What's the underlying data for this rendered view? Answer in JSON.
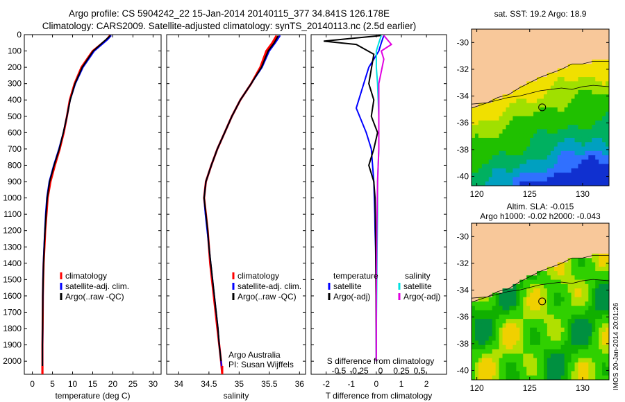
{
  "header": {
    "line1": "Argo profile: CS 5904242_22 15-Jan-2014 20140115_377 34.841S 126.178E",
    "line2": "Climatology: CARS2009. Satellite-adjusted climatology: synTS_20140113.nc (2.5d earlier)"
  },
  "side_label": "IMOS 20-Jan-2014 20:01:26",
  "colors": {
    "climatology": "#ff0000",
    "satellite": "#0000ff",
    "argo": "#000000",
    "sal_satellite": "#00e0e0",
    "sal_argo": "#e000e0",
    "land": "#f8c89a"
  },
  "panel1": {
    "xlabel": "temperature (deg C)",
    "xticks": [
      0,
      5,
      10,
      15,
      20,
      25,
      30
    ],
    "xlim": [
      -2,
      32
    ],
    "legend": [
      "climatology",
      "satellite-adj. clim.",
      "Argo(..raw -QC)"
    ]
  },
  "panel2": {
    "xlabel": "salinity",
    "xticks": [
      34,
      34.5,
      35,
      35.5,
      36
    ],
    "xlim": [
      33.8,
      36.1
    ],
    "legend": [
      "climatology",
      "satellite-adj. clim.",
      "Argo(..raw -QC)"
    ],
    "note1": "Argo Australia",
    "note2": "PI: Susan Wijffels"
  },
  "panel3": {
    "xlabel": "T difference from climatology",
    "xticks": [
      "-2",
      "-1",
      "0",
      "1",
      "2"
    ],
    "xlim": [
      -2.6,
      2.8
    ],
    "s_label": "S difference from climatology",
    "s_ticks": [
      "-0.5",
      "-0.25",
      "0",
      "0.25",
      "0.5"
    ],
    "legend_t_title": "temperature",
    "legend_s_title": "salinity",
    "legend_t": [
      "satellite",
      "Argo(-adj)"
    ],
    "legend_s": [
      "satellite",
      "Argo(-adj)"
    ]
  },
  "depth_ticks": [
    0,
    100,
    200,
    300,
    400,
    500,
    600,
    700,
    800,
    900,
    1000,
    1100,
    1200,
    1300,
    1400,
    1500,
    1600,
    1700,
    1800,
    1900,
    2000
  ],
  "chart_data": [
    {
      "type": "line",
      "title": "",
      "xlabel": "temperature (deg C)",
      "ylabel": "",
      "xlim": [
        -2,
        32
      ],
      "ylim": [
        2080,
        0
      ],
      "series": [
        {
          "name": "climatology",
          "x": [
            19.3,
            18.5,
            15,
            12.2,
            10.5,
            9.3,
            8.6,
            7.8,
            6.8,
            5.6,
            4.5,
            3.8,
            3.5,
            3.2,
            3.0,
            2.8,
            2.7,
            2.6,
            2.55,
            2.5,
            2.5
          ],
          "y": [
            5,
            30,
            100,
            200,
            300,
            400,
            500,
            600,
            700,
            800,
            900,
            1000,
            1100,
            1200,
            1300,
            1400,
            1500,
            1600,
            1800,
            1900,
            2080
          ]
        },
        {
          "name": "satellite-adj. clim.",
          "x": [
            19.6,
            18.7,
            15.4,
            12.6,
            10.7,
            9.4,
            8.6,
            7.7,
            6.6,
            5.3,
            4.2,
            3.6,
            3.3,
            3.1,
            2.9,
            2.75,
            2.65,
            2.6,
            2.55,
            2.5,
            2.5
          ],
          "y": [
            5,
            30,
            100,
            200,
            300,
            400,
            500,
            600,
            700,
            800,
            900,
            1000,
            1100,
            1200,
            1300,
            1400,
            1500,
            1600,
            1800,
            1900,
            2080
          ]
        },
        {
          "name": "Argo(..raw -QC)",
          "x": [
            19.4,
            18.3,
            15.1,
            12.4,
            10.6,
            9.4,
            8.6,
            7.7,
            6.7,
            5.4,
            4.3,
            3.7,
            3.4,
            3.15,
            2.95,
            2.78,
            2.68,
            2.6,
            2.55,
            2.5,
            2.5
          ],
          "y": [
            5,
            30,
            100,
            200,
            300,
            400,
            500,
            600,
            700,
            800,
            900,
            1000,
            1100,
            1200,
            1300,
            1400,
            1500,
            1600,
            1800,
            1900,
            2060
          ]
        }
      ]
    },
    {
      "type": "line",
      "title": "",
      "xlabel": "salinity",
      "ylabel": "",
      "xlim": [
        33.8,
        36.1
      ],
      "ylim": [
        2080,
        0
      ],
      "series": [
        {
          "name": "climatology",
          "x": [
            35.62,
            35.55,
            35.45,
            35.35,
            35.2,
            35.02,
            34.88,
            34.76,
            34.64,
            34.54,
            34.45,
            34.42,
            34.45,
            34.48,
            34.5,
            34.52,
            34.55,
            34.58,
            34.61,
            34.64,
            34.67,
            34.7,
            34.72
          ],
          "y": [
            5,
            50,
            100,
            200,
            300,
            400,
            500,
            600,
            700,
            800,
            900,
            1000,
            1100,
            1200,
            1300,
            1400,
            1500,
            1600,
            1700,
            1800,
            1900,
            2000,
            2080
          ]
        },
        {
          "name": "satellite-adj. clim.",
          "x": [
            35.68,
            35.6,
            35.5,
            35.38,
            35.2,
            35.02,
            34.88,
            34.76,
            34.64,
            34.54,
            34.45,
            34.42,
            34.44,
            34.47,
            34.5,
            34.53,
            34.56,
            34.59,
            34.62,
            34.65,
            34.67,
            34.7,
            34.72
          ],
          "y": [
            5,
            50,
            100,
            200,
            300,
            400,
            500,
            600,
            700,
            800,
            900,
            1000,
            1100,
            1200,
            1300,
            1400,
            1500,
            1600,
            1700,
            1800,
            1900,
            2000,
            2080
          ]
        },
        {
          "name": "Argo(..raw -QC)",
          "x": [
            35.65,
            35.58,
            35.48,
            35.37,
            35.2,
            35.02,
            34.88,
            34.76,
            34.64,
            34.54,
            34.45,
            34.42,
            34.45,
            34.48,
            34.5,
            34.53,
            34.56,
            34.59,
            34.62,
            34.65,
            34.67,
            34.7
          ],
          "y": [
            5,
            50,
            100,
            200,
            300,
            400,
            500,
            600,
            700,
            800,
            900,
            1000,
            1100,
            1200,
            1300,
            1400,
            1500,
            1600,
            1700,
            1800,
            1900,
            2000
          ]
        }
      ]
    },
    {
      "type": "line",
      "title": "",
      "xlabel": "T difference from climatology",
      "ylabel": "",
      "xlim": [
        -2.6,
        2.8
      ],
      "ylim": [
        2080,
        0
      ],
      "series": [
        {
          "name": "temperature satellite",
          "x": [
            0.3,
            0.2,
            0.1,
            -0.3,
            -0.5,
            -0.8,
            -0.4,
            -0.2,
            -0.15,
            -0.1,
            -0.08,
            -0.06,
            -0.05,
            -0.03,
            -0.02,
            -0.01,
            0,
            0
          ],
          "y": [
            5,
            50,
            100,
            200,
            300,
            450,
            600,
            700,
            800,
            900,
            1000,
            1100,
            1200,
            1300,
            1400,
            1500,
            1700,
            2000
          ]
        },
        {
          "name": "temperature Argo(-adj)",
          "x": [
            0.2,
            -2.1,
            -0.8,
            -0.1,
            -0.3,
            -0.1,
            -0.2,
            0.05,
            -0.1,
            -0.3,
            -0.1,
            -0.05,
            -0.03,
            -0.02,
            -0.01,
            0
          ],
          "y": [
            5,
            40,
            60,
            120,
            300,
            400,
            500,
            600,
            700,
            800,
            900,
            1000,
            1200,
            1400,
            1600,
            2000
          ]
        },
        {
          "name": "salinity satellite",
          "x": [
            0.2,
            0.1,
            0,
            0,
            0.05,
            0.1,
            0.1,
            0.05,
            0.05,
            0.03,
            0.02,
            0,
            0
          ],
          "y": [
            5,
            50,
            100,
            200,
            300,
            500,
            700,
            900,
            1100,
            1300,
            1500,
            1800,
            2000
          ]
        },
        {
          "name": "salinity Argo(-adj)",
          "x": [
            0.3,
            0.6,
            0.2,
            0.3,
            0.1,
            0.1,
            0.1,
            0.05,
            0.02,
            0,
            0
          ],
          "y": [
            5,
            60,
            100,
            150,
            300,
            500,
            700,
            900,
            1200,
            1600,
            2000
          ]
        }
      ]
    }
  ],
  "map1": {
    "title": "sat. SST: 19.2 Argo: 18.9",
    "xticks": [
      "120",
      "125",
      "130"
    ],
    "yticks": [
      "-30",
      "-32",
      "-34",
      "-36",
      "-38",
      "-40"
    ],
    "float_lon": 126.178,
    "float_lat": -34.841
  },
  "map2": {
    "title1": "Altim. SLA: -0.015",
    "title2": "Argo h1000: -0.02 h2000: -0.043",
    "xticks": [
      "120",
      "125",
      "130"
    ],
    "yticks": [
      "-30",
      "-32",
      "-34",
      "-36",
      "-38",
      "-40"
    ],
    "float_lon": 126.178,
    "float_lat": -34.841
  }
}
